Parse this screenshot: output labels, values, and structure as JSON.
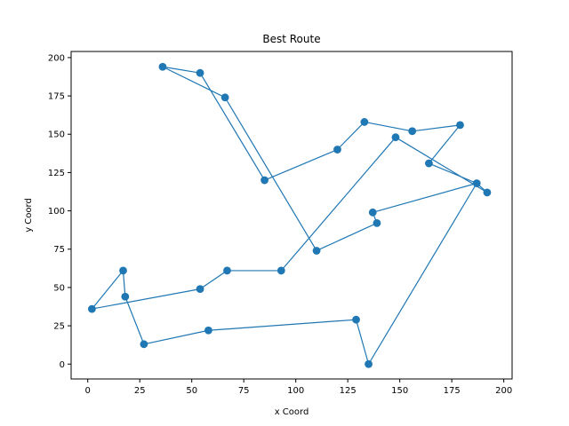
{
  "chart_data": {
    "type": "line",
    "title": "Best Route",
    "xlabel": "x Coord",
    "ylabel": "y Coord",
    "xlim": [
      -8,
      204
    ],
    "ylim": [
      -9.7,
      204
    ],
    "xticks": [
      0,
      25,
      50,
      75,
      100,
      125,
      150,
      175,
      200
    ],
    "yticks": [
      0,
      25,
      50,
      75,
      100,
      125,
      150,
      175,
      200
    ],
    "grid": false,
    "color": "#1f77b4",
    "series": [
      {
        "points": [
          [
            36,
            194
          ],
          [
            54,
            190
          ],
          [
            85,
            120
          ],
          [
            120,
            140
          ],
          [
            133,
            158
          ],
          [
            156,
            152
          ],
          [
            179,
            156
          ],
          [
            164,
            131
          ],
          [
            187,
            118
          ],
          [
            192,
            112
          ],
          [
            148,
            148
          ],
          [
            93,
            61
          ],
          [
            67,
            61
          ],
          [
            54,
            49
          ],
          [
            2,
            36
          ],
          [
            17,
            61
          ],
          [
            18,
            44
          ],
          [
            27,
            13
          ],
          [
            58,
            22
          ],
          [
            129,
            29
          ],
          [
            135,
            0
          ],
          [
            187,
            118
          ],
          [
            137,
            99
          ],
          [
            139,
            92
          ],
          [
            110,
            74
          ],
          [
            66,
            174
          ],
          [
            36,
            194
          ]
        ]
      }
    ]
  }
}
